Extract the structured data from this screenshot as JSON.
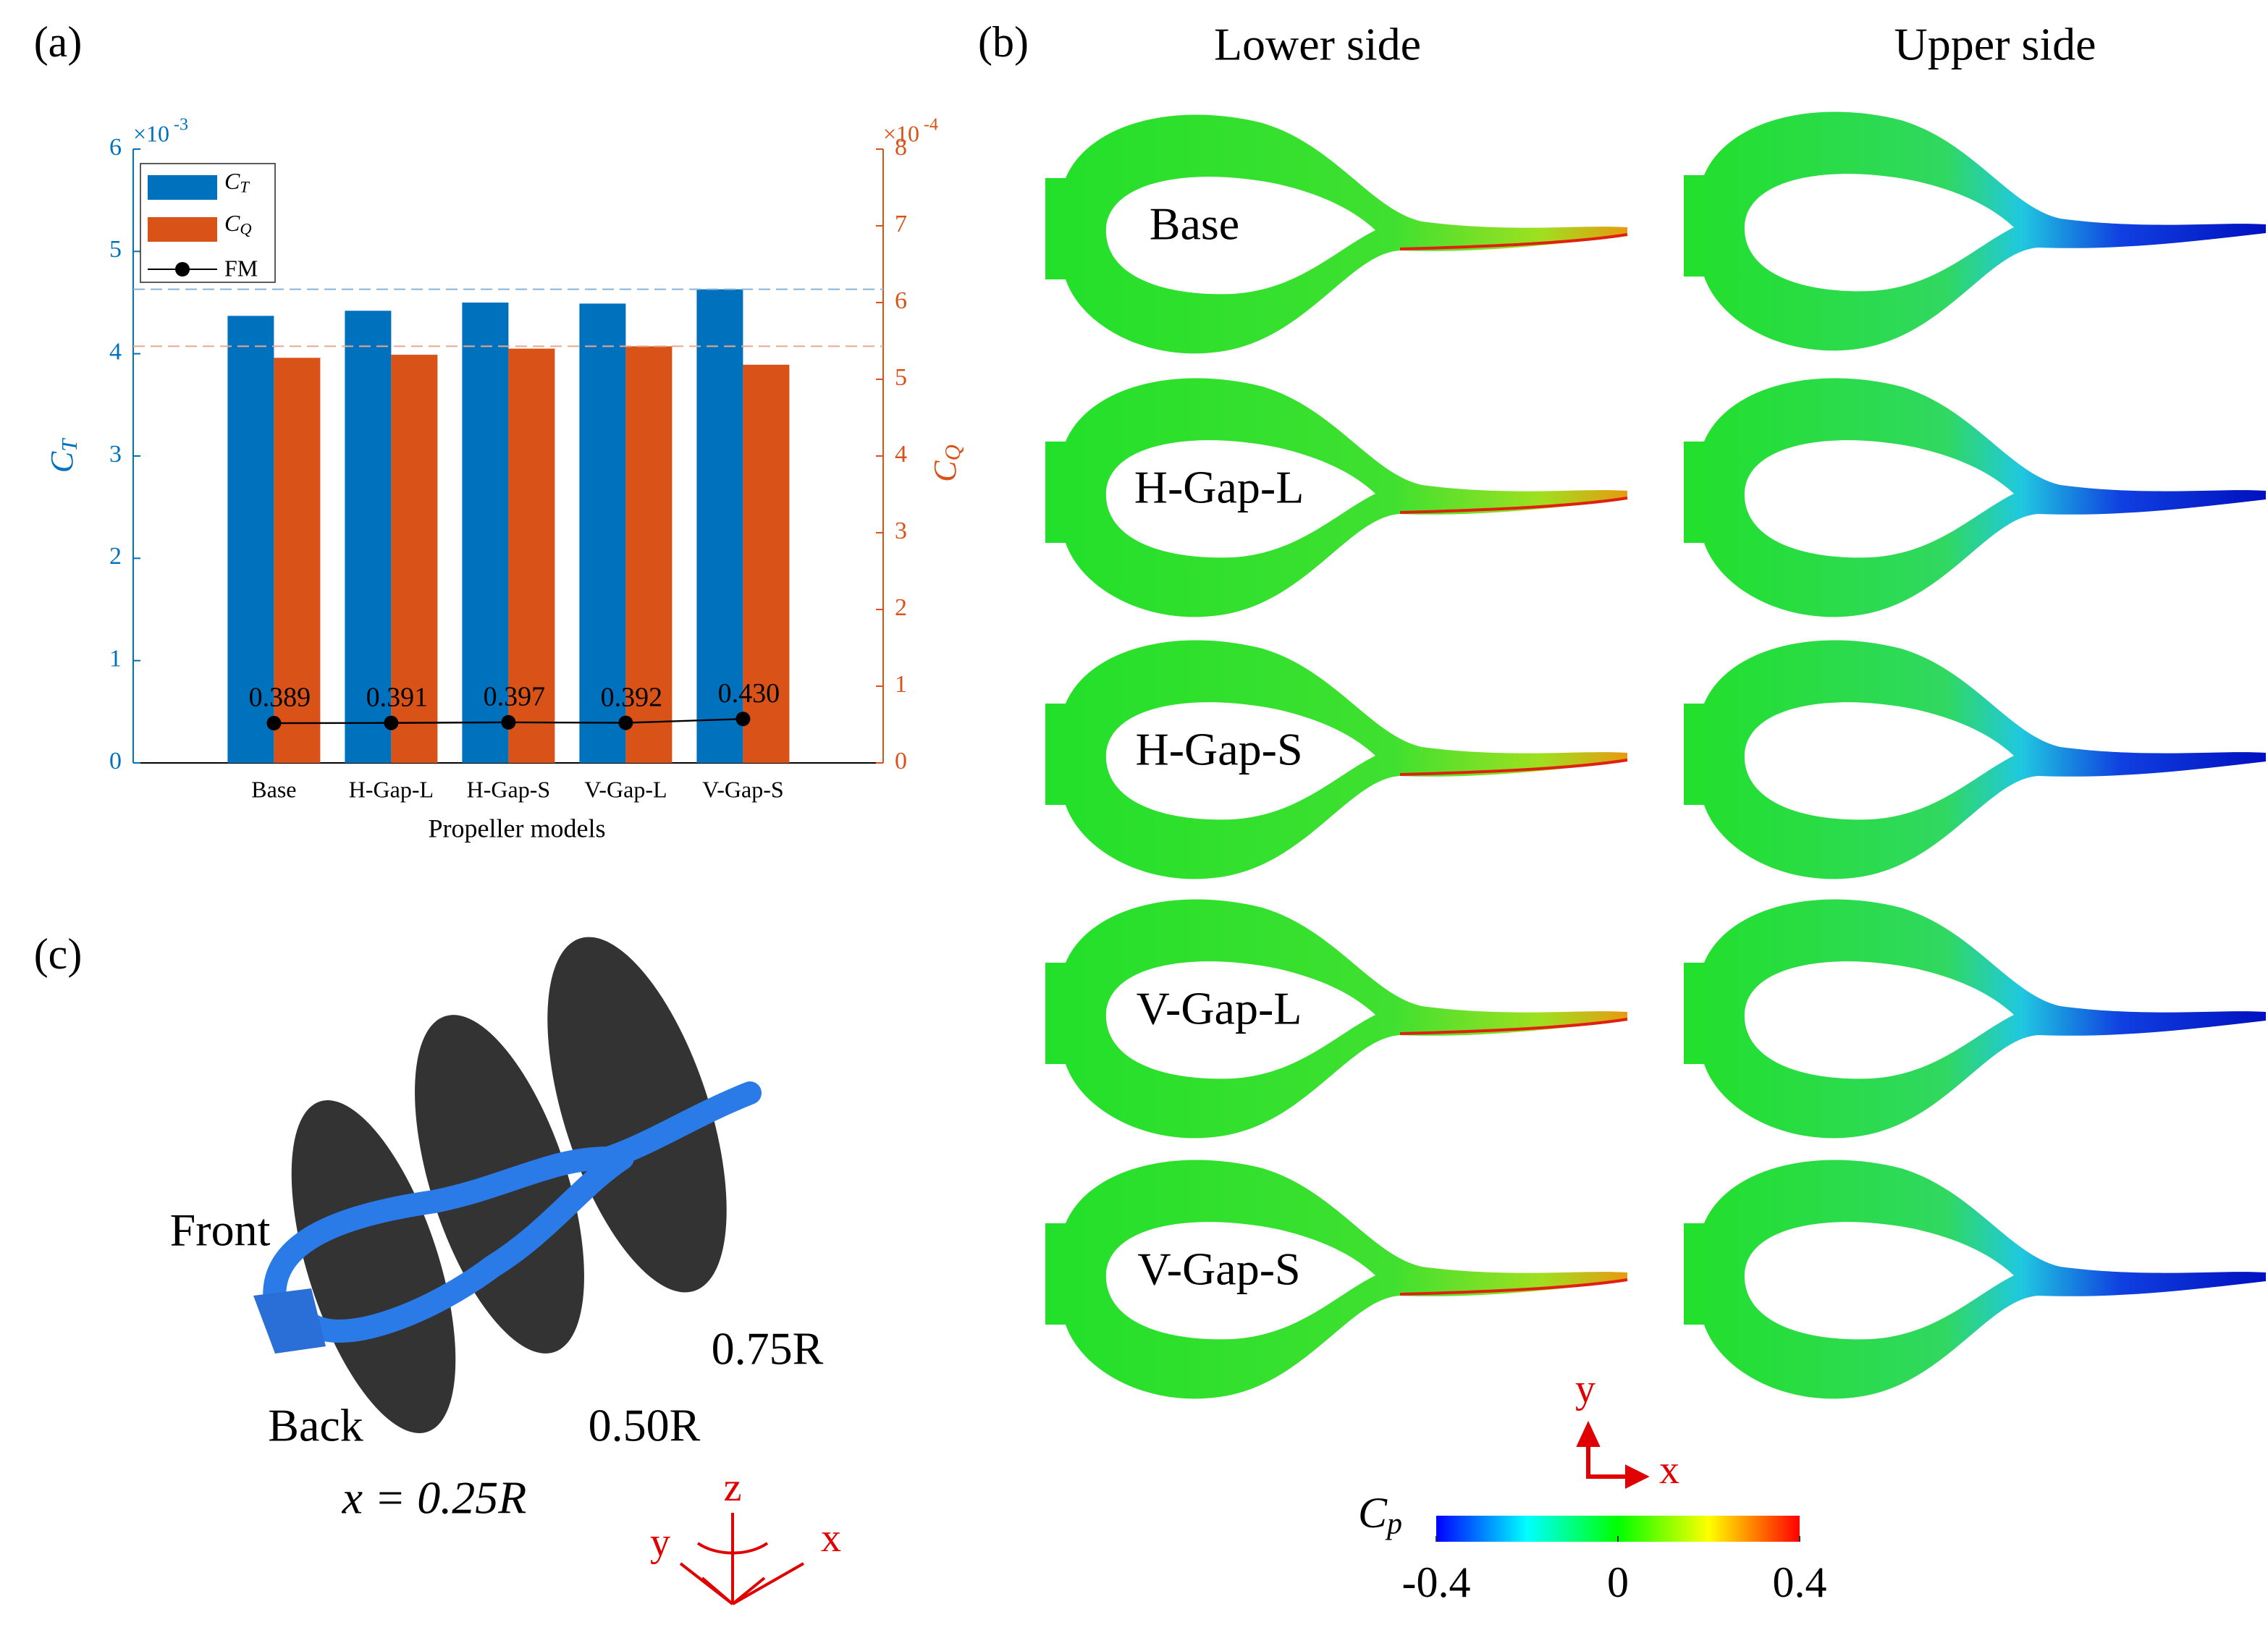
{
  "panel_labels": [
    "(a)",
    "(b)",
    "(c)"
  ],
  "chart_data": {
    "type": "bar",
    "categories": [
      "Base",
      "H-Gap-L",
      "H-Gap-S",
      "V-Gap-L",
      "V-Gap-S"
    ],
    "xlabel": "Propeller models",
    "ylabel": "CT",
    "y2label": "CQ",
    "y_multiplier": "×10",
    "y_power": "-3",
    "y2_multiplier": "×10",
    "y2_power": "-4",
    "ylim": [
      0,
      6
    ],
    "yticks": [
      0,
      1,
      2,
      3,
      4,
      5,
      6
    ],
    "y2lim": [
      0,
      8
    ],
    "y2ticks": [
      0,
      1,
      2,
      3,
      4,
      5,
      6,
      7,
      8
    ],
    "max_lines": true,
    "series": [
      {
        "name": "CT",
        "color": "#0072BD",
        "values": [
          4.37,
          4.42,
          4.5,
          4.49,
          4.63
        ]
      },
      {
        "name": "CQ",
        "color": "#D95319",
        "axis": "y2",
        "values": [
          5.28,
          5.32,
          5.4,
          5.43,
          5.19
        ]
      },
      {
        "name": "FM",
        "color": "#000000",
        "type": "line",
        "values": [
          0.389,
          0.391,
          0.397,
          0.392,
          0.43
        ],
        "value_labels": [
          "0.389",
          "0.391",
          "0.397",
          "0.392",
          "0.430"
        ]
      }
    ]
  },
  "contours": {
    "columns": [
      "Lower side",
      "Upper side"
    ],
    "rows": [
      "Base",
      "H-Gap-L",
      "H-Gap-S",
      "V-Gap-L",
      "V-Gap-S"
    ],
    "axis_labels": [
      "y",
      "x"
    ],
    "colorbar": {
      "label": "Cp",
      "lim": [
        -0.4,
        0.4
      ],
      "ticks": [
        -0.4,
        0,
        0.4
      ]
    }
  },
  "geometry": {
    "labels": [
      "Front",
      "Back",
      "x = 0.25R",
      "0.50R",
      "0.75R"
    ],
    "axis_labels": [
      "z",
      "y",
      "x"
    ]
  }
}
